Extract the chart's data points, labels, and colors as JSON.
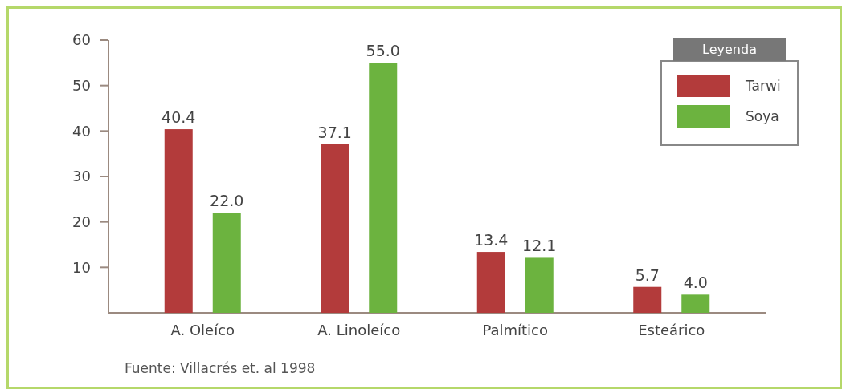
{
  "chart_data": {
    "type": "bar",
    "categories": [
      "A. Oleíco",
      "A. Linoleíco",
      "Palmítico",
      "Esteárico"
    ],
    "series": [
      {
        "name": "Tarwi",
        "color": "#b33b3b",
        "values": [
          40.4,
          37.1,
          13.4,
          5.7
        ],
        "value_labels": [
          "40.4",
          "37.1",
          "13.4",
          "5.7"
        ]
      },
      {
        "name": "Soya",
        "color": "#6cb33f",
        "values": [
          22.0,
          55.0,
          12.1,
          4.0
        ],
        "value_labels": [
          "22.0",
          "55.0",
          "12.1",
          "4.0"
        ]
      }
    ],
    "ylim": [
      0,
      60
    ],
    "yticks": [
      10,
      20,
      30,
      40,
      50,
      60
    ],
    "legend": "top right",
    "legend_title": "Leyenda",
    "annotations": [
      "Fuente: Villacrés et. al 1998"
    ]
  }
}
